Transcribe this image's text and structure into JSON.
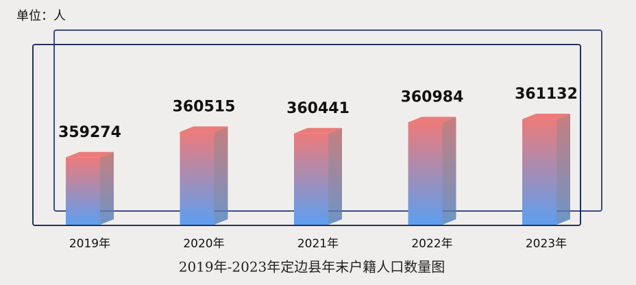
{
  "chart_data": {
    "type": "bar3d",
    "unit_label": "单位：人",
    "title": "2019年-2023年定边县年末户籍人口数量图",
    "categories": [
      "2019年",
      "2020年",
      "2021年",
      "2022年",
      "2023年"
    ],
    "values": [
      359274,
      360515,
      360441,
      360984,
      361132
    ],
    "color_top": "#ec7b7b",
    "color_bottom": "#5c9ff0",
    "ylim": [
      356000,
      362000
    ]
  }
}
